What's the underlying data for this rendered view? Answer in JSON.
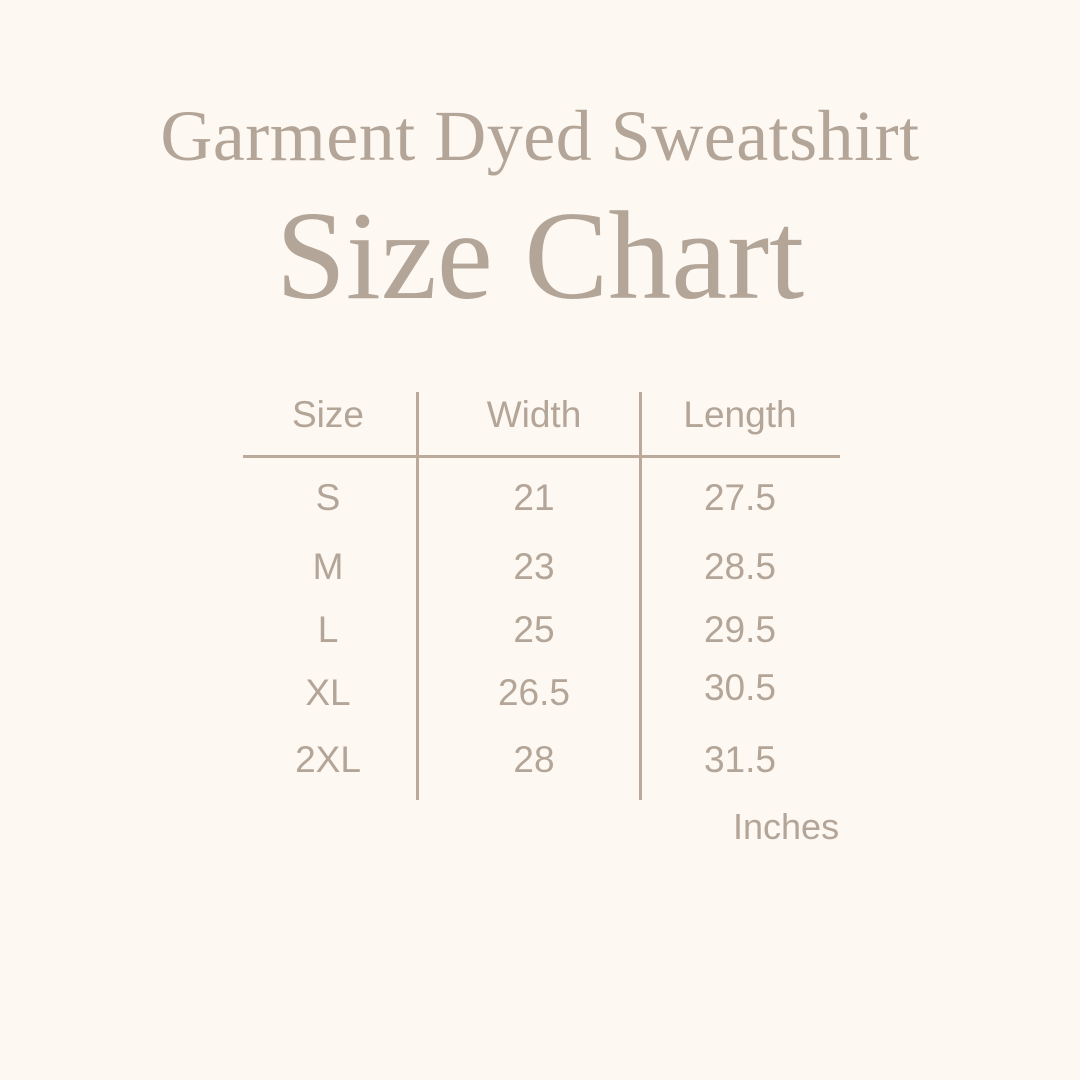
{
  "title": "Garment Dyed Sweatshirt",
  "subtitle": "Size Chart",
  "table": {
    "headers": [
      "Size",
      "Width",
      "Length"
    ],
    "rows": [
      [
        "S",
        "21",
        "27.5"
      ],
      [
        "M",
        "23",
        "28.5"
      ],
      [
        "L",
        "25",
        "29.5"
      ],
      [
        "XL",
        "26.5",
        "30.5"
      ],
      [
        "2XL",
        "28",
        "31.5"
      ]
    ]
  },
  "unit": "Inches",
  "colors": {
    "background": "#fdf8f2",
    "text": "#b3a597",
    "lines": "#bba999"
  }
}
